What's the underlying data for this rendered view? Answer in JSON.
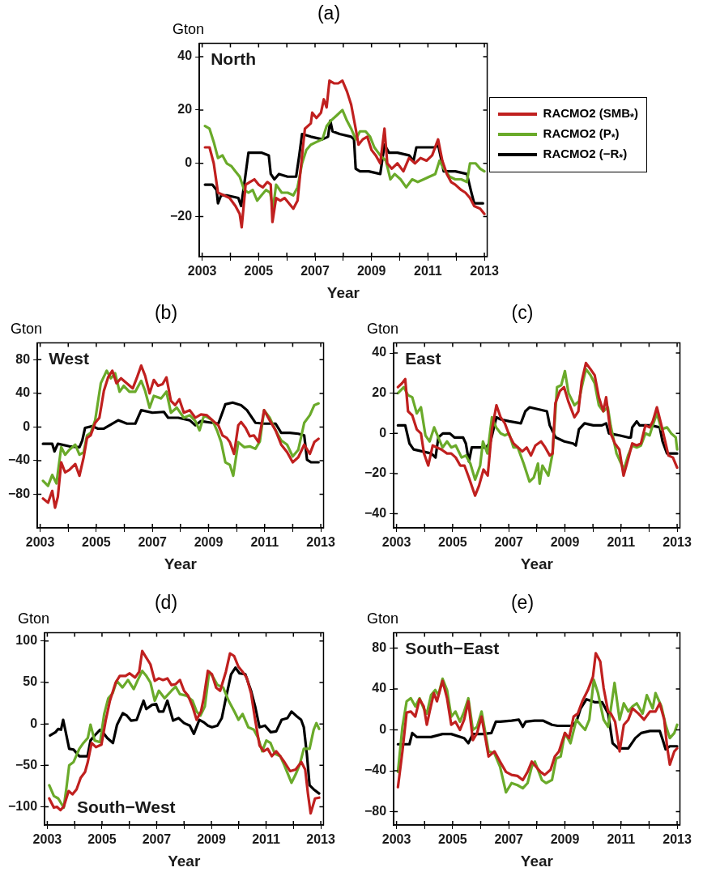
{
  "chart_data": [
    {
      "type": "line",
      "title": "(a)",
      "xlabel": "Year",
      "ylabel": "Gton",
      "annotations": [
        "North"
      ],
      "xlim": [
        2002.9,
        2013.1
      ],
      "ylim": [
        -35,
        45
      ],
      "xticks": [
        2003,
        {
          "value": 2004,
          "label": null
        },
        2005,
        {
          "value": 2006,
          "label": null
        },
        2007,
        {
          "value": 2008,
          "label": null
        },
        2009,
        {
          "value": 2010,
          "label": null
        },
        2011,
        {
          "value": 2012,
          "label": null
        },
        2013
      ],
      "yticks": [
        -20,
        0,
        20,
        40
      ],
      "grid": false,
      "legend": "right",
      "line_style": "solid",
      "series": [
        {
          "name": "RACMO2 (SMB$_{*}$)",
          "color": "#c0201f",
          "x": [
            2003.1,
            2003.26,
            2003.41,
            2003.56,
            2003.77,
            2003.97,
            2004.18,
            2004.33,
            2004.4,
            2004.54,
            2004.69,
            2004.85,
            2005.0,
            2005.15,
            2005.31,
            2005.43,
            2005.49,
            2005.62,
            2005.77,
            2005.92,
            2006.23,
            2006.38,
            2006.54,
            2006.64,
            2006.85,
            2006.9,
            2007.05,
            2007.21,
            2007.31,
            2007.41,
            2007.51,
            2007.67,
            2007.82,
            2007.97,
            2008.13,
            2008.28,
            2008.44,
            2008.54,
            2008.69,
            2008.85,
            2009.0,
            2009.15,
            2009.31,
            2009.46,
            2009.56,
            2009.72,
            2009.92,
            2010.13,
            2010.33,
            2010.54,
            2010.74,
            2010.95,
            2011.15,
            2011.36,
            2011.51,
            2011.67,
            2011.82,
            2011.97,
            2012.18,
            2012.33,
            2012.49,
            2012.64,
            2012.85,
            2013.0
          ],
          "values": [
            6,
            6,
            0,
            -11,
            -12,
            -13,
            -16,
            -19,
            -24,
            -8,
            -7,
            -6,
            -8,
            -9,
            -7,
            -8,
            -22,
            -13,
            -14,
            -13,
            -17,
            -14,
            3,
            13,
            15,
            19,
            17,
            19,
            24,
            21,
            31,
            30,
            30,
            31,
            27,
            22,
            13,
            7,
            9,
            10,
            5,
            3,
            0,
            13,
            0,
            -2,
            0,
            -3,
            2,
            0,
            2,
            1,
            3,
            9,
            1,
            -4,
            -7,
            -8,
            -10,
            -11,
            -13,
            -16,
            -17,
            -19
          ]
        },
        {
          "name": "RACMO2 (P$_{*}$)",
          "color": "#6aaa2a",
          "x": [
            2003.1,
            2003.26,
            2003.41,
            2003.56,
            2003.72,
            2003.87,
            2004.03,
            2004.18,
            2004.33,
            2004.49,
            2004.64,
            2004.79,
            2004.95,
            2005.1,
            2005.26,
            2005.41,
            2005.51,
            2005.62,
            2005.82,
            2006.03,
            2006.23,
            2006.38,
            2006.54,
            2006.69,
            2006.85,
            2007.05,
            2007.26,
            2007.41,
            2007.56,
            2007.77,
            2007.97,
            2008.13,
            2008.28,
            2008.44,
            2008.59,
            2008.79,
            2008.95,
            2009.1,
            2009.31,
            2009.51,
            2009.67,
            2009.82,
            2010.03,
            2010.23,
            2010.44,
            2010.64,
            2010.85,
            2011.05,
            2011.26,
            2011.41,
            2011.56,
            2011.77,
            2011.97,
            2012.18,
            2012.38,
            2012.49,
            2012.69,
            2012.85,
            2013.0
          ],
          "values": [
            14,
            13,
            8,
            2,
            3,
            0,
            -1,
            -3,
            -5,
            -10,
            -11,
            -10,
            -14,
            -12,
            -10,
            -11,
            -17,
            -8,
            -11,
            -11,
            -12,
            -9,
            0,
            5,
            7,
            8,
            9,
            14,
            16,
            18,
            20,
            16,
            13,
            9,
            12,
            12,
            10,
            6,
            3,
            1,
            -6,
            -4,
            -6,
            -9,
            -6,
            -7,
            -6,
            -5,
            -4,
            1,
            -2,
            -5,
            -6,
            -6,
            -7,
            0,
            0,
            -2,
            -3
          ]
        },
        {
          "name": "RACMO2 (−R$_{*}$)",
          "color": "#000000",
          "x": [
            2003.1,
            2003.36,
            2003.51,
            2003.56,
            2003.67,
            2003.87,
            2004.28,
            2004.38,
            2004.49,
            2004.64,
            2004.79,
            2005.1,
            2005.36,
            2005.43,
            2005.56,
            2005.72,
            2006.03,
            2006.33,
            2006.44,
            2006.54,
            2006.85,
            2007.26,
            2007.46,
            2007.54,
            2007.62,
            2007.87,
            2008.28,
            2008.38,
            2008.44,
            2008.59,
            2008.9,
            2009.31,
            2009.46,
            2009.62,
            2009.92,
            2010.33,
            2010.49,
            2010.59,
            2010.95,
            2011.26,
            2011.36,
            2011.56,
            2011.97,
            2012.38,
            2012.54,
            2012.64,
            2012.95
          ],
          "values": [
            -8,
            -8,
            -10,
            -15,
            -12,
            -12,
            -13,
            -16,
            -8,
            4,
            4,
            4,
            3,
            -4,
            -6,
            -4,
            -5,
            -5,
            3,
            11,
            10,
            9,
            10,
            16,
            12,
            11,
            10,
            9,
            -2,
            -3,
            -3,
            -4,
            7,
            4,
            4,
            3,
            1,
            6,
            6,
            6,
            7,
            -3,
            -3,
            -4,
            -11,
            -15,
            -15
          ]
        }
      ]
    },
    {
      "type": "line",
      "title": "(b)",
      "xlabel": "Year",
      "ylabel": "Gton",
      "annotations": [
        "West"
      ],
      "xlim": [
        2002.9,
        2013.1
      ],
      "ylim": [
        -120,
        100
      ],
      "xticks": [
        2003,
        {
          "value": 2004,
          "label": null
        },
        2005,
        {
          "value": 2006,
          "label": null
        },
        2007,
        {
          "value": 2008,
          "label": null
        },
        2009,
        {
          "value": 2010,
          "label": null
        },
        2011,
        {
          "value": 2012,
          "label": null
        },
        2013
      ],
      "yticks": [
        -80,
        -40,
        0,
        40,
        80
      ],
      "grid": false,
      "line_style": "solid",
      "series": [
        {
          "color": "#c0201f",
          "x": [
            2003.1,
            2003.28,
            2003.43,
            2003.53,
            2003.63,
            2003.75,
            2003.89,
            2004.04,
            2004.25,
            2004.4,
            2004.55,
            2004.67,
            2004.8,
            2004.96,
            2005.11,
            2005.27,
            2005.42,
            2005.57,
            2005.72,
            2005.88,
            2006.09,
            2006.3,
            2006.44,
            2006.6,
            2006.74,
            2006.9,
            2007.05,
            2007.2,
            2007.36,
            2007.5,
            2007.66,
            2007.81,
            2007.96,
            2008.12,
            2008.33,
            2008.53,
            2008.73,
            2008.94,
            2009.14,
            2009.35,
            2009.5,
            2009.65,
            2009.76,
            2009.91,
            2010.06,
            2010.16,
            2010.32,
            2010.47,
            2010.62,
            2010.78,
            2010.98,
            2011.18,
            2011.39,
            2011.59,
            2011.8,
            2012.0,
            2012.2,
            2012.41,
            2012.61,
            2012.77,
            2012.92
          ],
          "values": [
            -85,
            -90,
            -76,
            -96,
            -83,
            -42,
            -54,
            -51,
            -44,
            -58,
            -36,
            -13,
            -10,
            5,
            11,
            43,
            59,
            67,
            52,
            58,
            52,
            46,
            58,
            73,
            61,
            40,
            56,
            49,
            51,
            59,
            31,
            26,
            33,
            17,
            20,
            11,
            15,
            14,
            8,
            2,
            -10,
            -13,
            -18,
            -32,
            2,
            6,
            -1,
            -11,
            -10,
            -18,
            20,
            8,
            -4,
            -21,
            -30,
            -42,
            -36,
            -21,
            -32,
            -18,
            -14
          ]
        },
        {
          "color": "#6aaa2a",
          "x": [
            2003.1,
            2003.28,
            2003.43,
            2003.58,
            2003.75,
            2003.89,
            2004.04,
            2004.25,
            2004.4,
            2004.55,
            2004.67,
            2004.8,
            2004.96,
            2005.16,
            2005.37,
            2005.52,
            2005.67,
            2005.83,
            2005.98,
            2006.18,
            2006.39,
            2006.6,
            2006.74,
            2006.9,
            2007.05,
            2007.31,
            2007.5,
            2007.66,
            2007.87,
            2008.12,
            2008.33,
            2008.53,
            2008.68,
            2008.84,
            2009.14,
            2009.3,
            2009.45,
            2009.6,
            2009.76,
            2009.88,
            2010.06,
            2010.27,
            2010.47,
            2010.67,
            2010.83,
            2010.98,
            2011.18,
            2011.39,
            2011.59,
            2011.8,
            2012.0,
            2012.2,
            2012.41,
            2012.61,
            2012.77,
            2012.92
          ],
          "values": [
            -64,
            -70,
            -57,
            -67,
            -24,
            -33,
            -27,
            -21,
            -33,
            -30,
            -10,
            -7,
            8,
            52,
            67,
            58,
            64,
            42,
            49,
            42,
            42,
            55,
            43,
            23,
            37,
            34,
            42,
            17,
            23,
            11,
            14,
            7,
            -4,
            14,
            8,
            -4,
            -18,
            -42,
            -45,
            -58,
            -18,
            -24,
            -23,
            -26,
            -17,
            20,
            11,
            -4,
            -16,
            -21,
            -35,
            -27,
            5,
            14,
            26,
            28
          ]
        },
        {
          "color": "#000000",
          "x": [
            2003.1,
            2003.43,
            2003.51,
            2003.63,
            2004.04,
            2004.4,
            2004.5,
            2004.6,
            2004.86,
            2005.06,
            2005.27,
            2005.47,
            2005.78,
            2006.09,
            2006.39,
            2006.6,
            2007.0,
            2007.41,
            2007.56,
            2007.92,
            2008.33,
            2008.53,
            2008.73,
            2009.14,
            2009.35,
            2009.6,
            2009.86,
            2010.16,
            2010.37,
            2010.67,
            2010.98,
            2011.39,
            2011.59,
            2011.9,
            2012.2,
            2012.41,
            2012.51,
            2012.66,
            2012.92
          ],
          "values": [
            -20,
            -20,
            -29,
            -20,
            -23,
            -24,
            -16,
            -1,
            1,
            -2,
            -2,
            2,
            8,
            4,
            4,
            20,
            17,
            18,
            11,
            11,
            8,
            2,
            7,
            5,
            4,
            27,
            29,
            26,
            20,
            5,
            4,
            4,
            -7,
            -7,
            -8,
            -10,
            -39,
            -42,
            -42
          ]
        }
      ]
    },
    {
      "type": "line",
      "title": "(c)",
      "xlabel": "Year",
      "ylabel": "Gton",
      "annotations": [
        "East"
      ],
      "xlim": [
        2002.9,
        2013.1
      ],
      "ylim": [
        -47,
        45
      ],
      "xticks": [
        2003,
        {
          "value": 2004,
          "label": null
        },
        2005,
        {
          "value": 2006,
          "label": null
        },
        2007,
        {
          "value": 2008,
          "label": null
        },
        2009,
        {
          "value": 2010,
          "label": null
        },
        2011,
        {
          "value": 2012,
          "label": null
        },
        2013
      ],
      "yticks": [
        -40,
        -20,
        0,
        20,
        40
      ],
      "grid": false,
      "line_style": "solid",
      "series": [
        {
          "color": "#c0201f",
          "x": [
            2003.05,
            2003.2,
            2003.31,
            2003.41,
            2003.56,
            2003.72,
            2003.87,
            2003.98,
            2004.13,
            2004.29,
            2004.44,
            2004.6,
            2004.8,
            2004.95,
            2005.11,
            2005.27,
            2005.42,
            2005.58,
            2005.8,
            2005.94,
            2006.1,
            2006.25,
            2006.4,
            2006.56,
            2006.71,
            2006.86,
            2007.02,
            2007.17,
            2007.33,
            2007.48,
            2007.64,
            2007.79,
            2007.95,
            2008.15,
            2008.3,
            2008.46,
            2008.56,
            2008.66,
            2008.82,
            2008.97,
            2009.12,
            2009.34,
            2009.48,
            2009.6,
            2009.75,
            2009.91,
            2010.06,
            2010.21,
            2010.37,
            2010.47,
            2010.63,
            2010.78,
            2010.94,
            2011.09,
            2011.25,
            2011.4,
            2011.56,
            2011.71,
            2011.87,
            2012.02,
            2012.13,
            2012.28,
            2012.44,
            2012.59,
            2012.69,
            2012.85,
            2013.0
          ],
          "values": [
            23,
            25,
            27,
            11,
            9,
            2,
            0,
            -10,
            -16,
            -6,
            -7,
            -8,
            -10,
            -10,
            -12,
            -16,
            -16,
            -22,
            -31,
            -26,
            -18,
            -21,
            2,
            14,
            8,
            5,
            -1,
            -5,
            -7,
            -9,
            -7,
            -11,
            -6,
            -4,
            -7,
            -11,
            -10,
            15,
            21,
            23,
            16,
            8,
            11,
            26,
            35,
            32,
            29,
            18,
            11,
            18,
            0,
            -5,
            -8,
            -21,
            -13,
            -5,
            -6,
            -5,
            4,
            3,
            6,
            13,
            4,
            -5,
            -11,
            -12,
            -17
          ]
        },
        {
          "color": "#6aaa2a",
          "x": [
            2003.05,
            2003.26,
            2003.41,
            2003.56,
            2003.72,
            2003.87,
            2004.03,
            2004.18,
            2004.34,
            2004.49,
            2004.64,
            2004.8,
            2004.95,
            2005.11,
            2005.32,
            2005.47,
            2005.63,
            2005.8,
            2005.98,
            2006.08,
            2006.24,
            2006.4,
            2006.55,
            2006.71,
            2006.86,
            2007.01,
            2007.17,
            2007.32,
            2007.53,
            2007.74,
            2007.89,
            2008.04,
            2008.1,
            2008.2,
            2008.41,
            2008.56,
            2008.72,
            2008.87,
            2009.0,
            2009.13,
            2009.34,
            2009.5,
            2009.6,
            2009.75,
            2009.91,
            2010.06,
            2010.21,
            2010.37,
            2010.53,
            2010.63,
            2010.84,
            2011.1,
            2011.25,
            2011.4,
            2011.56,
            2011.71,
            2011.87,
            2012.02,
            2012.13,
            2012.28,
            2012.44,
            2012.64,
            2012.79,
            2012.95,
            2013.0
          ],
          "values": [
            20,
            23,
            19,
            18,
            10,
            13,
            -1,
            -4,
            3,
            -2,
            -7,
            -4,
            -7,
            -6,
            -12,
            -11,
            -15,
            -23,
            -16,
            -4,
            -10,
            8,
            3,
            0,
            -1,
            0,
            -7,
            -7,
            -15,
            -24,
            -22,
            -15,
            -25,
            -16,
            -21,
            -10,
            23,
            24,
            31,
            20,
            14,
            16,
            23,
            32,
            29,
            25,
            14,
            11,
            13,
            4,
            -10,
            -18,
            -11,
            -6,
            -7,
            -6,
            0,
            -1,
            4,
            10,
            2,
            3,
            0,
            -2,
            -8
          ]
        },
        {
          "color": "#000000",
          "x": [
            2003.05,
            2003.31,
            2003.46,
            2003.61,
            2003.93,
            2004.24,
            2004.39,
            2004.49,
            2004.65,
            2004.9,
            2005.06,
            2005.37,
            2005.47,
            2005.58,
            2005.68,
            2005.94,
            2006.2,
            2006.35,
            2006.56,
            2006.71,
            2007.02,
            2007.43,
            2007.59,
            2007.74,
            2008.05,
            2008.36,
            2008.46,
            2008.67,
            2008.98,
            2009.29,
            2009.39,
            2009.5,
            2009.7,
            2010.01,
            2010.32,
            2010.47,
            2010.57,
            2010.94,
            2011.25,
            2011.35,
            2011.4,
            2011.56,
            2011.66,
            2012.07,
            2012.38,
            2012.48,
            2012.64,
            2013.0
          ],
          "values": [
            4,
            4,
            -5,
            -8,
            -9,
            -10,
            -12,
            -2,
            0,
            0,
            -2,
            -2,
            -5,
            -14,
            -7,
            -7,
            -7,
            -4,
            8,
            7,
            6,
            5,
            11,
            13,
            12,
            11,
            4,
            -2,
            -4,
            -5,
            -6,
            2,
            5,
            4,
            4,
            5,
            0,
            -1,
            -2,
            -2,
            3,
            6,
            4,
            4,
            3,
            -4,
            -10,
            -10
          ]
        }
      ]
    },
    {
      "type": "line",
      "title": "(d)",
      "xlabel": "Year",
      "ylabel": "Gton",
      "annotations": [
        "South−West"
      ],
      "xlim": [
        2002.9,
        2013.1
      ],
      "ylim": [
        -122,
        110
      ],
      "xticks": [
        2003,
        {
          "value": 2004,
          "label": null
        },
        2005,
        {
          "value": 2006,
          "label": null
        },
        2007,
        {
          "value": 2008,
          "label": null
        },
        2009,
        {
          "value": 2010,
          "label": null
        },
        2011,
        {
          "value": 2012,
          "label": null
        },
        2013
      ],
      "yticks": [
        -100,
        -50,
        0,
        50,
        100
      ],
      "grid": false,
      "line_style": "solid",
      "series": [
        {
          "color": "#c0201f",
          "x": [
            2003.07,
            2003.24,
            2003.35,
            2003.48,
            2003.6,
            2003.78,
            2003.92,
            2004.07,
            2004.22,
            2004.38,
            2004.48,
            2004.62,
            2004.78,
            2004.98,
            2005.14,
            2005.29,
            2005.5,
            2005.65,
            2005.86,
            2006.01,
            2006.21,
            2006.36,
            2006.47,
            2006.62,
            2006.77,
            2006.93,
            2007.08,
            2007.23,
            2007.39,
            2007.54,
            2007.69,
            2007.85,
            2008.0,
            2008.15,
            2008.31,
            2008.46,
            2008.62,
            2008.72,
            2008.87,
            2009.02,
            2009.17,
            2009.32,
            2009.53,
            2009.68,
            2009.83,
            2009.99,
            2010.14,
            2010.29,
            2010.45,
            2010.6,
            2010.76,
            2010.91,
            2011.06,
            2011.21,
            2011.37,
            2011.52,
            2011.67,
            2011.88,
            2012.08,
            2012.29,
            2012.43,
            2012.53,
            2012.63,
            2012.79,
            2012.94
          ],
          "values": [
            -90,
            -101,
            -100,
            -104,
            -100,
            -81,
            -85,
            -79,
            -65,
            -58,
            -46,
            -23,
            -28,
            -25,
            5,
            28,
            50,
            58,
            58,
            61,
            56,
            63,
            88,
            80,
            72,
            52,
            55,
            53,
            55,
            47,
            48,
            53,
            40,
            34,
            21,
            5,
            15,
            31,
            64,
            60,
            44,
            40,
            63,
            85,
            82,
            69,
            63,
            56,
            37,
            5,
            -26,
            -33,
            -30,
            -39,
            -33,
            -39,
            -46,
            -57,
            -55,
            -46,
            -55,
            -84,
            -108,
            -90,
            -89
          ]
        },
        {
          "color": "#6aaa2a",
          "x": [
            2003.07,
            2003.24,
            2003.4,
            2003.6,
            2003.7,
            2003.8,
            2003.96,
            2004.17,
            2004.32,
            2004.48,
            2004.58,
            2004.73,
            2004.93,
            2005.08,
            2005.23,
            2005.39,
            2005.54,
            2005.75,
            2005.95,
            2006.16,
            2006.31,
            2006.47,
            2006.62,
            2006.77,
            2006.93,
            2007.08,
            2007.29,
            2007.54,
            2007.69,
            2007.85,
            2008.1,
            2008.31,
            2008.46,
            2008.6,
            2008.76,
            2008.92,
            2009.07,
            2009.22,
            2009.43,
            2009.63,
            2009.84,
            2009.99,
            2010.14,
            2010.35,
            2010.55,
            2010.71,
            2010.86,
            2011.01,
            2011.16,
            2011.32,
            2011.52,
            2011.67,
            2011.93,
            2012.08,
            2012.23,
            2012.38,
            2012.59,
            2012.74,
            2012.84,
            2012.94
          ],
          "values": [
            -74,
            -87,
            -90,
            -101,
            -77,
            -50,
            -46,
            -30,
            -23,
            -17,
            -1,
            -20,
            -22,
            12,
            31,
            37,
            52,
            44,
            53,
            42,
            53,
            64,
            58,
            50,
            28,
            40,
            31,
            40,
            45,
            36,
            34,
            28,
            15,
            10,
            21,
            63,
            56,
            47,
            44,
            28,
            15,
            5,
            12,
            -4,
            -7,
            -17,
            -33,
            -20,
            -23,
            -36,
            -39,
            -50,
            -71,
            -61,
            -49,
            -30,
            -30,
            -7,
            1,
            -6
          ]
        },
        {
          "color": "#000000",
          "x": [
            2003.1,
            2003.3,
            2003.4,
            2003.5,
            2003.58,
            2003.7,
            2003.8,
            2003.96,
            2004.17,
            2004.47,
            2004.58,
            2004.73,
            2004.93,
            2005.03,
            2005.19,
            2005.4,
            2005.55,
            2005.76,
            2005.91,
            2006.06,
            2006.27,
            2006.52,
            2006.62,
            2006.83,
            2006.98,
            2007.08,
            2007.24,
            2007.39,
            2007.6,
            2007.8,
            2008.0,
            2008.21,
            2008.36,
            2008.56,
            2008.72,
            2008.87,
            2009.02,
            2009.22,
            2009.38,
            2009.53,
            2009.72,
            2009.88,
            2010.03,
            2010.24,
            2010.45,
            2010.6,
            2010.76,
            2010.96,
            2011.17,
            2011.37,
            2011.57,
            2011.78,
            2011.93,
            2012.13,
            2012.28,
            2012.38,
            2012.49,
            2012.59,
            2012.74,
            2012.94
          ],
          "values": [
            -14,
            -10,
            -6,
            -7,
            5,
            -14,
            -30,
            -31,
            -39,
            -39,
            -20,
            -14,
            -7,
            -10,
            -17,
            -23,
            -1,
            13,
            10,
            4,
            5,
            28,
            18,
            23,
            24,
            15,
            15,
            28,
            4,
            7,
            1,
            -2,
            -12,
            5,
            2,
            -2,
            -4,
            -2,
            7,
            31,
            60,
            68,
            61,
            60,
            40,
            21,
            -4,
            -2,
            -10,
            -9,
            5,
            7,
            15,
            9,
            5,
            -4,
            -36,
            -74,
            -79,
            -84
          ]
        }
      ]
    },
    {
      "type": "line",
      "title": "(e)",
      "xlabel": "Year",
      "ylabel": "Gton",
      "annotations": [
        "South−East"
      ],
      "xlim": [
        2002.9,
        2013.1
      ],
      "ylim": [
        -93,
        95
      ],
      "xticks": [
        2003,
        {
          "value": 2004,
          "label": null
        },
        2005,
        {
          "value": 2006,
          "label": null
        },
        2007,
        {
          "value": 2008,
          "label": null
        },
        2009,
        {
          "value": 2010,
          "label": null
        },
        2011,
        {
          "value": 2012,
          "label": null
        },
        2013
      ],
      "yticks": [
        -80,
        -40,
        0,
        40,
        80
      ],
      "grid": false,
      "line_style": "solid",
      "series": [
        {
          "color": "#c0201f",
          "x": [
            2003.05,
            2003.21,
            2003.36,
            2003.51,
            2003.67,
            2003.82,
            2003.97,
            2004.08,
            2004.18,
            2004.33,
            2004.44,
            2004.64,
            2004.8,
            2004.95,
            2005.1,
            2005.26,
            2005.41,
            2005.56,
            2005.72,
            2005.87,
            2006.03,
            2006.18,
            2006.28,
            2006.49,
            2006.69,
            2006.9,
            2007.1,
            2007.31,
            2007.5,
            2007.67,
            2007.82,
            2007.97,
            2008.13,
            2008.28,
            2008.49,
            2008.64,
            2008.79,
            2009.0,
            2009.15,
            2009.31,
            2009.46,
            2009.62,
            2009.82,
            2010.0,
            2010.1,
            2010.26,
            2010.38,
            2010.54,
            2010.64,
            2010.79,
            2010.95,
            2011.1,
            2011.26,
            2011.41,
            2011.62,
            2011.82,
            2012.03,
            2012.23,
            2012.38,
            2012.54,
            2012.64,
            2012.74,
            2012.9,
            2013.0
          ],
          "values": [
            -56,
            -21,
            17,
            18,
            13,
            30,
            23,
            5,
            18,
            36,
            28,
            48,
            31,
            5,
            8,
            0,
            10,
            28,
            -10,
            -3,
            13,
            -10,
            -26,
            -21,
            -31,
            -41,
            -44,
            -45,
            -49,
            -41,
            -31,
            -36,
            -41,
            -44,
            -39,
            -26,
            -21,
            -3,
            -8,
            13,
            16,
            28,
            39,
            52,
            75,
            67,
            41,
            18,
            16,
            8,
            -21,
            5,
            10,
            21,
            16,
            10,
            18,
            18,
            26,
            10,
            -16,
            -34,
            -21,
            -18
          ]
        },
        {
          "color": "#6aaa2a",
          "x": [
            2003.05,
            2003.21,
            2003.36,
            2003.51,
            2003.67,
            2003.82,
            2003.97,
            2004.08,
            2004.23,
            2004.38,
            2004.49,
            2004.64,
            2004.8,
            2004.95,
            2005.1,
            2005.26,
            2005.41,
            2005.56,
            2005.72,
            2005.87,
            2006.03,
            2006.18,
            2006.28,
            2006.49,
            2006.69,
            2006.9,
            2007.1,
            2007.31,
            2007.5,
            2007.67,
            2007.82,
            2007.93,
            2008.18,
            2008.33,
            2008.54,
            2008.69,
            2008.85,
            2009.0,
            2009.2,
            2009.41,
            2009.56,
            2009.72,
            2009.87,
            2010.03,
            2010.18,
            2010.38,
            2010.54,
            2010.64,
            2010.77,
            2010.95,
            2011.1,
            2011.26,
            2011.41,
            2011.56,
            2011.77,
            2011.92,
            2012.13,
            2012.23,
            2012.44,
            2012.59,
            2012.74,
            2012.9,
            2013.0
          ],
          "values": [
            -41,
            3,
            28,
            31,
            23,
            31,
            21,
            16,
            34,
            39,
            34,
            50,
            39,
            13,
            18,
            8,
            18,
            31,
            0,
            3,
            18,
            -5,
            -21,
            -23,
            -36,
            -61,
            -52,
            -54,
            -57,
            -52,
            -36,
            -31,
            -49,
            -52,
            -49,
            -28,
            -26,
            -3,
            -13,
            10,
            5,
            0,
            10,
            49,
            36,
            10,
            3,
            21,
            46,
            10,
            26,
            18,
            23,
            26,
            16,
            34,
            21,
            36,
            23,
            5,
            -8,
            -3,
            5
          ]
        },
        {
          "color": "#000000",
          "x": [
            2003.05,
            2003.46,
            2003.56,
            2003.72,
            2004.23,
            2004.64,
            2004.95,
            2005.41,
            2005.56,
            2005.72,
            2006.08,
            2006.38,
            2006.54,
            2006.69,
            2007.1,
            2007.36,
            2007.5,
            2007.6,
            2007.92,
            2008.23,
            2008.54,
            2008.74,
            2009.26,
            2009.41,
            2009.56,
            2009.77,
            2010.08,
            2010.33,
            2010.54,
            2010.7,
            2010.9,
            2011.26,
            2011.51,
            2011.72,
            2012.03,
            2012.38,
            2012.49,
            2012.59,
            2012.74,
            2013.0
          ],
          "values": [
            -14,
            -14,
            -3,
            -7,
            -7,
            -4,
            -4,
            -8,
            -13,
            -4,
            -4,
            -3,
            8,
            8,
            9,
            10,
            3,
            8,
            9,
            9,
            5,
            4,
            4,
            8,
            21,
            30,
            27,
            27,
            16,
            -13,
            -18,
            -18,
            -8,
            -3,
            -1,
            -1,
            -10,
            -19,
            -16,
            -16
          ]
        }
      ]
    }
  ]
}
